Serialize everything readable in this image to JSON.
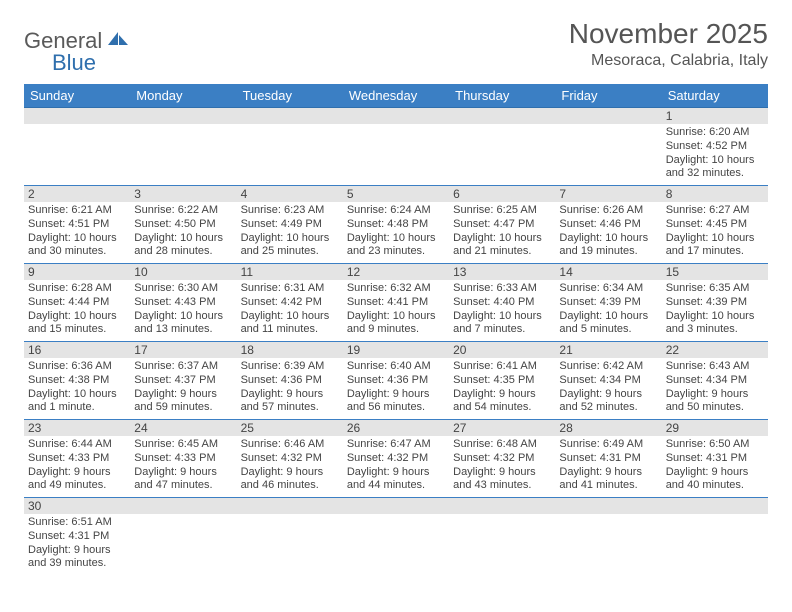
{
  "logo": {
    "general": "General",
    "blue": "Blue"
  },
  "title": "November 2025",
  "location": "Mesoraca, Calabria, Italy",
  "colors": {
    "header_bg": "#3b7fc4",
    "header_text": "#ffffff",
    "daynum_bg": "#e4e4e4",
    "border": "#3b7fc4",
    "logo_blue": "#2f6fad",
    "text": "#444444"
  },
  "day_headers": [
    "Sunday",
    "Monday",
    "Tuesday",
    "Wednesday",
    "Thursday",
    "Friday",
    "Saturday"
  ],
  "weeks": [
    [
      null,
      null,
      null,
      null,
      null,
      null,
      {
        "n": "1",
        "sr": "Sunrise: 6:20 AM",
        "ss": "Sunset: 4:52 PM",
        "dl": "Daylight: 10 hours and 32 minutes."
      }
    ],
    [
      {
        "n": "2",
        "sr": "Sunrise: 6:21 AM",
        "ss": "Sunset: 4:51 PM",
        "dl": "Daylight: 10 hours and 30 minutes."
      },
      {
        "n": "3",
        "sr": "Sunrise: 6:22 AM",
        "ss": "Sunset: 4:50 PM",
        "dl": "Daylight: 10 hours and 28 minutes."
      },
      {
        "n": "4",
        "sr": "Sunrise: 6:23 AM",
        "ss": "Sunset: 4:49 PM",
        "dl": "Daylight: 10 hours and 25 minutes."
      },
      {
        "n": "5",
        "sr": "Sunrise: 6:24 AM",
        "ss": "Sunset: 4:48 PM",
        "dl": "Daylight: 10 hours and 23 minutes."
      },
      {
        "n": "6",
        "sr": "Sunrise: 6:25 AM",
        "ss": "Sunset: 4:47 PM",
        "dl": "Daylight: 10 hours and 21 minutes."
      },
      {
        "n": "7",
        "sr": "Sunrise: 6:26 AM",
        "ss": "Sunset: 4:46 PM",
        "dl": "Daylight: 10 hours and 19 minutes."
      },
      {
        "n": "8",
        "sr": "Sunrise: 6:27 AM",
        "ss": "Sunset: 4:45 PM",
        "dl": "Daylight: 10 hours and 17 minutes."
      }
    ],
    [
      {
        "n": "9",
        "sr": "Sunrise: 6:28 AM",
        "ss": "Sunset: 4:44 PM",
        "dl": "Daylight: 10 hours and 15 minutes."
      },
      {
        "n": "10",
        "sr": "Sunrise: 6:30 AM",
        "ss": "Sunset: 4:43 PM",
        "dl": "Daylight: 10 hours and 13 minutes."
      },
      {
        "n": "11",
        "sr": "Sunrise: 6:31 AM",
        "ss": "Sunset: 4:42 PM",
        "dl": "Daylight: 10 hours and 11 minutes."
      },
      {
        "n": "12",
        "sr": "Sunrise: 6:32 AM",
        "ss": "Sunset: 4:41 PM",
        "dl": "Daylight: 10 hours and 9 minutes."
      },
      {
        "n": "13",
        "sr": "Sunrise: 6:33 AM",
        "ss": "Sunset: 4:40 PM",
        "dl": "Daylight: 10 hours and 7 minutes."
      },
      {
        "n": "14",
        "sr": "Sunrise: 6:34 AM",
        "ss": "Sunset: 4:39 PM",
        "dl": "Daylight: 10 hours and 5 minutes."
      },
      {
        "n": "15",
        "sr": "Sunrise: 6:35 AM",
        "ss": "Sunset: 4:39 PM",
        "dl": "Daylight: 10 hours and 3 minutes."
      }
    ],
    [
      {
        "n": "16",
        "sr": "Sunrise: 6:36 AM",
        "ss": "Sunset: 4:38 PM",
        "dl": "Daylight: 10 hours and 1 minute."
      },
      {
        "n": "17",
        "sr": "Sunrise: 6:37 AM",
        "ss": "Sunset: 4:37 PM",
        "dl": "Daylight: 9 hours and 59 minutes."
      },
      {
        "n": "18",
        "sr": "Sunrise: 6:39 AM",
        "ss": "Sunset: 4:36 PM",
        "dl": "Daylight: 9 hours and 57 minutes."
      },
      {
        "n": "19",
        "sr": "Sunrise: 6:40 AM",
        "ss": "Sunset: 4:36 PM",
        "dl": "Daylight: 9 hours and 56 minutes."
      },
      {
        "n": "20",
        "sr": "Sunrise: 6:41 AM",
        "ss": "Sunset: 4:35 PM",
        "dl": "Daylight: 9 hours and 54 minutes."
      },
      {
        "n": "21",
        "sr": "Sunrise: 6:42 AM",
        "ss": "Sunset: 4:34 PM",
        "dl": "Daylight: 9 hours and 52 minutes."
      },
      {
        "n": "22",
        "sr": "Sunrise: 6:43 AM",
        "ss": "Sunset: 4:34 PM",
        "dl": "Daylight: 9 hours and 50 minutes."
      }
    ],
    [
      {
        "n": "23",
        "sr": "Sunrise: 6:44 AM",
        "ss": "Sunset: 4:33 PM",
        "dl": "Daylight: 9 hours and 49 minutes."
      },
      {
        "n": "24",
        "sr": "Sunrise: 6:45 AM",
        "ss": "Sunset: 4:33 PM",
        "dl": "Daylight: 9 hours and 47 minutes."
      },
      {
        "n": "25",
        "sr": "Sunrise: 6:46 AM",
        "ss": "Sunset: 4:32 PM",
        "dl": "Daylight: 9 hours and 46 minutes."
      },
      {
        "n": "26",
        "sr": "Sunrise: 6:47 AM",
        "ss": "Sunset: 4:32 PM",
        "dl": "Daylight: 9 hours and 44 minutes."
      },
      {
        "n": "27",
        "sr": "Sunrise: 6:48 AM",
        "ss": "Sunset: 4:32 PM",
        "dl": "Daylight: 9 hours and 43 minutes."
      },
      {
        "n": "28",
        "sr": "Sunrise: 6:49 AM",
        "ss": "Sunset: 4:31 PM",
        "dl": "Daylight: 9 hours and 41 minutes."
      },
      {
        "n": "29",
        "sr": "Sunrise: 6:50 AM",
        "ss": "Sunset: 4:31 PM",
        "dl": "Daylight: 9 hours and 40 minutes."
      }
    ],
    [
      {
        "n": "30",
        "sr": "Sunrise: 6:51 AM",
        "ss": "Sunset: 4:31 PM",
        "dl": "Daylight: 9 hours and 39 minutes."
      },
      null,
      null,
      null,
      null,
      null,
      null
    ]
  ]
}
